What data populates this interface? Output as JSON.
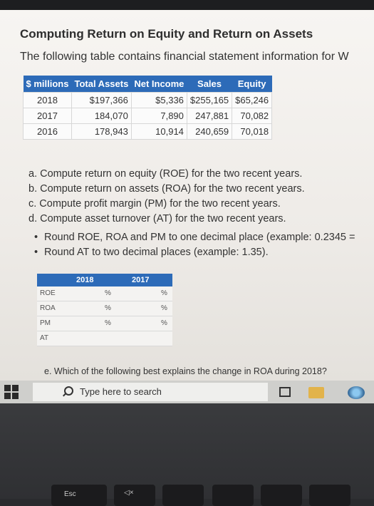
{
  "page": {
    "title": "Computing Return on Equity and Return on Assets",
    "intro": "The following table contains financial statement information for W"
  },
  "financials": {
    "headers": [
      "$ millions",
      "Total Assets",
      "Net Income",
      "Sales",
      "Equity"
    ],
    "rows": [
      [
        "2018",
        "$197,366",
        "$5,336",
        "$255,165",
        "$65,246"
      ],
      [
        "2017",
        "184,070",
        "7,890",
        "247,881",
        "70,082"
      ],
      [
        "2016",
        "178,943",
        "10,914",
        "240,659",
        "70,018"
      ]
    ]
  },
  "questions": [
    "a. Compute return on equity (ROE) for the two recent years.",
    "b. Compute return on assets (ROA) for the two recent years.",
    "c. Compute profit margin (PM) for the two recent years.",
    "d. Compute asset turnover (AT) for the two recent years."
  ],
  "bullets": [
    "Round ROE, ROA and PM to one decimal place (example: 0.2345 =",
    "Round AT to two decimal places (example: 1.35)."
  ],
  "answer_table": {
    "columns": [
      "2018",
      "2017"
    ],
    "rows": [
      {
        "label": "ROE",
        "v2018": "",
        "unit2018": "%",
        "v2017": "",
        "unit2017": "%"
      },
      {
        "label": "ROA",
        "v2018": "",
        "unit2018": "%",
        "v2017": "",
        "unit2017": "%"
      },
      {
        "label": "PM",
        "v2018": "",
        "unit2018": "%",
        "v2017": "",
        "unit2017": "%"
      },
      {
        "label": "AT",
        "v2018": "",
        "unit2018": "",
        "v2017": "",
        "unit2017": ""
      }
    ]
  },
  "question_e": "e. Which of the following best explains the change in ROA during 2018?",
  "taskbar": {
    "search_placeholder": "Type here to search"
  },
  "keyboard": {
    "esc_label": "Esc",
    "f1_label": "◁×"
  },
  "icons": [
    "windows-start-icon",
    "search-icon",
    "task-view-icon",
    "file-explorer-icon",
    "app-icon"
  ]
}
